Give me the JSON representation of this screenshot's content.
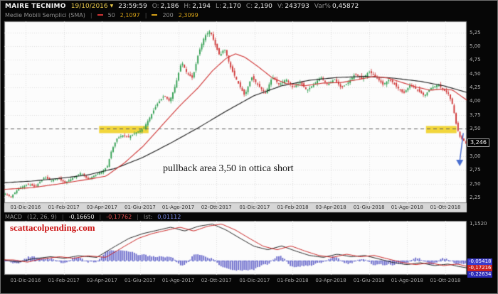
{
  "ui": {
    "sep": "|"
  },
  "header": {
    "symbol": "MAIRE TECNIMO",
    "date": "19/10/2016",
    "dropdown": "▼",
    "time": "23:59:59",
    "open_label": "O:",
    "open": "2,186",
    "high_label": "H:",
    "high": "2,194",
    "low_label": "L:",
    "low": "2,170",
    "close_label": "C:",
    "close": "2,190",
    "volume_label": "V:",
    "volume": "243793",
    "var_label": "Var%",
    "var": "0,45872"
  },
  "sma_row": {
    "name": "Medie Mobili Semplici (SMA)",
    "p1": "50",
    "v1": "2,1097",
    "p2": "200",
    "v2": "2,3099"
  },
  "macd_row": {
    "name": "MACD",
    "params": "(12, 26, 9)",
    "macd": "-0,16650",
    "signal": "-0,17762",
    "hist_label": "Ist:",
    "hist": "0,01112"
  },
  "annotations": {
    "pullback": "pullback area 3,50 in ottica short",
    "watermark": "scattacolpending.com"
  },
  "colors": {
    "up": "#2f9e4f",
    "down": "#cf3434",
    "sma50": "#d03434",
    "sma200": "#1b1b1b",
    "sma50_swatch": "#d03434",
    "sma200_swatch": "#d4a017",
    "support": "#5a5a5a",
    "highlight": "#f2d63c",
    "arrow": "#4a6fd0",
    "macd": "#262626",
    "signal": "#cc2626",
    "hist": "#6b6bcc",
    "zero": "#5566cc"
  },
  "chart_data": [
    {
      "type": "candlestick",
      "title": "MAIRE TECNIMO daily",
      "y_range": [
        2.15,
        5.45
      ],
      "candle_count": 240,
      "x_tick_labels": [
        "01-Dic-2016",
        "01-Feb-2017",
        "03-Apr-2017",
        "01-Giu-2017",
        "01-Ago-2017",
        "02-Ott-2017",
        "01-Dic-2017",
        "01-Feb-2018",
        "03-Apr-2018",
        "01-Giu-2018",
        "01-Ago-2018",
        "01-Ott-2018"
      ],
      "y_ticks": [
        {
          "label": "5,25",
          "value": 5.25
        },
        {
          "label": "5,00",
          "value": 5.0
        },
        {
          "label": "4,75",
          "value": 4.75
        },
        {
          "label": "4,50",
          "value": 4.5
        },
        {
          "label": "4,25",
          "value": 4.25
        },
        {
          "label": "4,00",
          "value": 4.0
        },
        {
          "label": "3,75",
          "value": 3.75
        },
        {
          "label": "3,50",
          "value": 3.5
        },
        {
          "label": "3,25",
          "value": 3.25
        },
        {
          "label": "3,00",
          "value": 3.0
        },
        {
          "label": "2,75",
          "value": 2.75
        },
        {
          "label": "2,50",
          "value": 2.5
        },
        {
          "label": "2,25",
          "value": 2.25
        }
      ],
      "last_price": {
        "label": "3,246",
        "value": 3.246
      },
      "support_line": 3.5,
      "highlight_zones": [
        {
          "x0": 0.205,
          "x1": 0.312,
          "p0": 3.42,
          "p1": 3.55
        },
        {
          "x0": 0.912,
          "x1": 0.978,
          "p0": 3.42,
          "p1": 3.55
        }
      ],
      "arrow": {
        "x": 0.988,
        "from": 3.42,
        "to": 2.82
      },
      "price_path": [
        [
          0,
          2.32
        ],
        [
          0.012,
          2.26
        ],
        [
          0.03,
          2.42
        ],
        [
          0.05,
          2.5
        ],
        [
          0.065,
          2.44
        ],
        [
          0.085,
          2.62
        ],
        [
          0.1,
          2.56
        ],
        [
          0.115,
          2.6
        ],
        [
          0.13,
          2.52
        ],
        [
          0.15,
          2.62
        ],
        [
          0.165,
          2.7
        ],
        [
          0.18,
          2.58
        ],
        [
          0.195,
          2.66
        ],
        [
          0.21,
          2.72
        ],
        [
          0.222,
          2.82
        ],
        [
          0.23,
          3.08
        ],
        [
          0.242,
          3.32
        ],
        [
          0.255,
          3.38
        ],
        [
          0.268,
          3.35
        ],
        [
          0.282,
          3.42
        ],
        [
          0.3,
          3.5
        ],
        [
          0.315,
          3.72
        ],
        [
          0.33,
          3.95
        ],
        [
          0.345,
          4.1
        ],
        [
          0.357,
          4.0
        ],
        [
          0.37,
          4.3
        ],
        [
          0.383,
          4.72
        ],
        [
          0.395,
          4.5
        ],
        [
          0.407,
          4.42
        ],
        [
          0.42,
          4.88
        ],
        [
          0.433,
          5.18
        ],
        [
          0.445,
          5.28
        ],
        [
          0.456,
          5.02
        ],
        [
          0.466,
          4.82
        ],
        [
          0.476,
          4.96
        ],
        [
          0.49,
          4.6
        ],
        [
          0.505,
          4.34
        ],
        [
          0.52,
          4.1
        ],
        [
          0.535,
          4.44
        ],
        [
          0.55,
          4.28
        ],
        [
          0.565,
          4.14
        ],
        [
          0.58,
          4.44
        ],
        [
          0.595,
          4.3
        ],
        [
          0.61,
          4.4
        ],
        [
          0.625,
          4.24
        ],
        [
          0.64,
          4.34
        ],
        [
          0.655,
          4.2
        ],
        [
          0.67,
          4.3
        ],
        [
          0.685,
          4.44
        ],
        [
          0.7,
          4.3
        ],
        [
          0.715,
          4.4
        ],
        [
          0.73,
          4.24
        ],
        [
          0.745,
          4.34
        ],
        [
          0.76,
          4.5
        ],
        [
          0.775,
          4.4
        ],
        [
          0.79,
          4.54
        ],
        [
          0.805,
          4.44
        ],
        [
          0.82,
          4.3
        ],
        [
          0.835,
          4.4
        ],
        [
          0.85,
          4.26
        ],
        [
          0.865,
          4.14
        ],
        [
          0.88,
          4.3
        ],
        [
          0.895,
          4.2
        ],
        [
          0.91,
          4.1
        ],
        [
          0.925,
          4.24
        ],
        [
          0.94,
          4.3
        ],
        [
          0.952,
          4.2
        ],
        [
          0.962,
          4.14
        ],
        [
          0.972,
          3.92
        ],
        [
          0.98,
          3.55
        ],
        [
          0.988,
          3.34
        ],
        [
          1,
          3.25
        ]
      ],
      "sma50_path": [
        [
          0,
          2.4
        ],
        [
          0.06,
          2.43
        ],
        [
          0.12,
          2.5
        ],
        [
          0.18,
          2.58
        ],
        [
          0.22,
          2.64
        ],
        [
          0.26,
          2.88
        ],
        [
          0.3,
          3.18
        ],
        [
          0.34,
          3.55
        ],
        [
          0.38,
          3.92
        ],
        [
          0.42,
          4.25
        ],
        [
          0.45,
          4.55
        ],
        [
          0.48,
          4.78
        ],
        [
          0.5,
          4.86
        ],
        [
          0.52,
          4.8
        ],
        [
          0.55,
          4.62
        ],
        [
          0.58,
          4.42
        ],
        [
          0.61,
          4.32
        ],
        [
          0.65,
          4.28
        ],
        [
          0.69,
          4.33
        ],
        [
          0.73,
          4.34
        ],
        [
          0.77,
          4.4
        ],
        [
          0.8,
          4.45
        ],
        [
          0.83,
          4.42
        ],
        [
          0.86,
          4.34
        ],
        [
          0.89,
          4.26
        ],
        [
          0.92,
          4.2
        ],
        [
          0.95,
          4.22
        ],
        [
          0.97,
          4.2
        ],
        [
          1,
          4.02
        ]
      ],
      "sma200_path": [
        [
          0,
          2.52
        ],
        [
          0.06,
          2.55
        ],
        [
          0.12,
          2.6
        ],
        [
          0.18,
          2.66
        ],
        [
          0.24,
          2.78
        ],
        [
          0.3,
          2.98
        ],
        [
          0.36,
          3.24
        ],
        [
          0.42,
          3.52
        ],
        [
          0.48,
          3.82
        ],
        [
          0.54,
          4.1
        ],
        [
          0.6,
          4.28
        ],
        [
          0.66,
          4.38
        ],
        [
          0.72,
          4.43
        ],
        [
          0.78,
          4.45
        ],
        [
          0.84,
          4.42
        ],
        [
          0.9,
          4.36
        ],
        [
          0.95,
          4.28
        ],
        [
          1,
          4.16
        ]
      ]
    },
    {
      "type": "macd",
      "y_range": [
        -0.45,
        1.25
      ],
      "signal_lag": 0.02,
      "hist_scale": 1.8,
      "y_max_tick": {
        "label": "1,1520",
        "value": 1.152
      },
      "last_values": [
        {
          "name": "histogram",
          "label": "-0,05418",
          "value": -0.05418,
          "bg": "#3a3acc"
        },
        {
          "name": "signal",
          "label": "-0,17216",
          "value": -0.17216,
          "bg": "#cc2222"
        },
        {
          "name": "macd",
          "label": "-0,22634",
          "value": -0.22634,
          "bg": "#2a2ab8"
        }
      ],
      "macd_path": [
        [
          0,
          0.02
        ],
        [
          0.03,
          -0.05
        ],
        [
          0.06,
          0.05
        ],
        [
          0.1,
          0.12
        ],
        [
          0.13,
          0.07
        ],
        [
          0.16,
          0.15
        ],
        [
          0.2,
          0.1
        ],
        [
          0.24,
          0.45
        ],
        [
          0.27,
          0.7
        ],
        [
          0.3,
          0.85
        ],
        [
          0.33,
          0.95
        ],
        [
          0.36,
          1.05
        ],
        [
          0.39,
          0.93
        ],
        [
          0.42,
          1.08
        ],
        [
          0.45,
          1.15
        ],
        [
          0.48,
          0.96
        ],
        [
          0.51,
          0.7
        ],
        [
          0.54,
          0.45
        ],
        [
          0.57,
          0.34
        ],
        [
          0.6,
          0.46
        ],
        [
          0.63,
          0.3
        ],
        [
          0.66,
          0.16
        ],
        [
          0.69,
          0.1
        ],
        [
          0.72,
          0.2
        ],
        [
          0.75,
          0.12
        ],
        [
          0.78,
          0.16
        ],
        [
          0.81,
          0.05
        ],
        [
          0.84,
          -0.06
        ],
        [
          0.87,
          -0.13
        ],
        [
          0.9,
          -0.07
        ],
        [
          0.93,
          -0.16
        ],
        [
          0.96,
          -0.11
        ],
        [
          0.98,
          -0.18
        ],
        [
          1,
          -0.23
        ]
      ]
    }
  ]
}
